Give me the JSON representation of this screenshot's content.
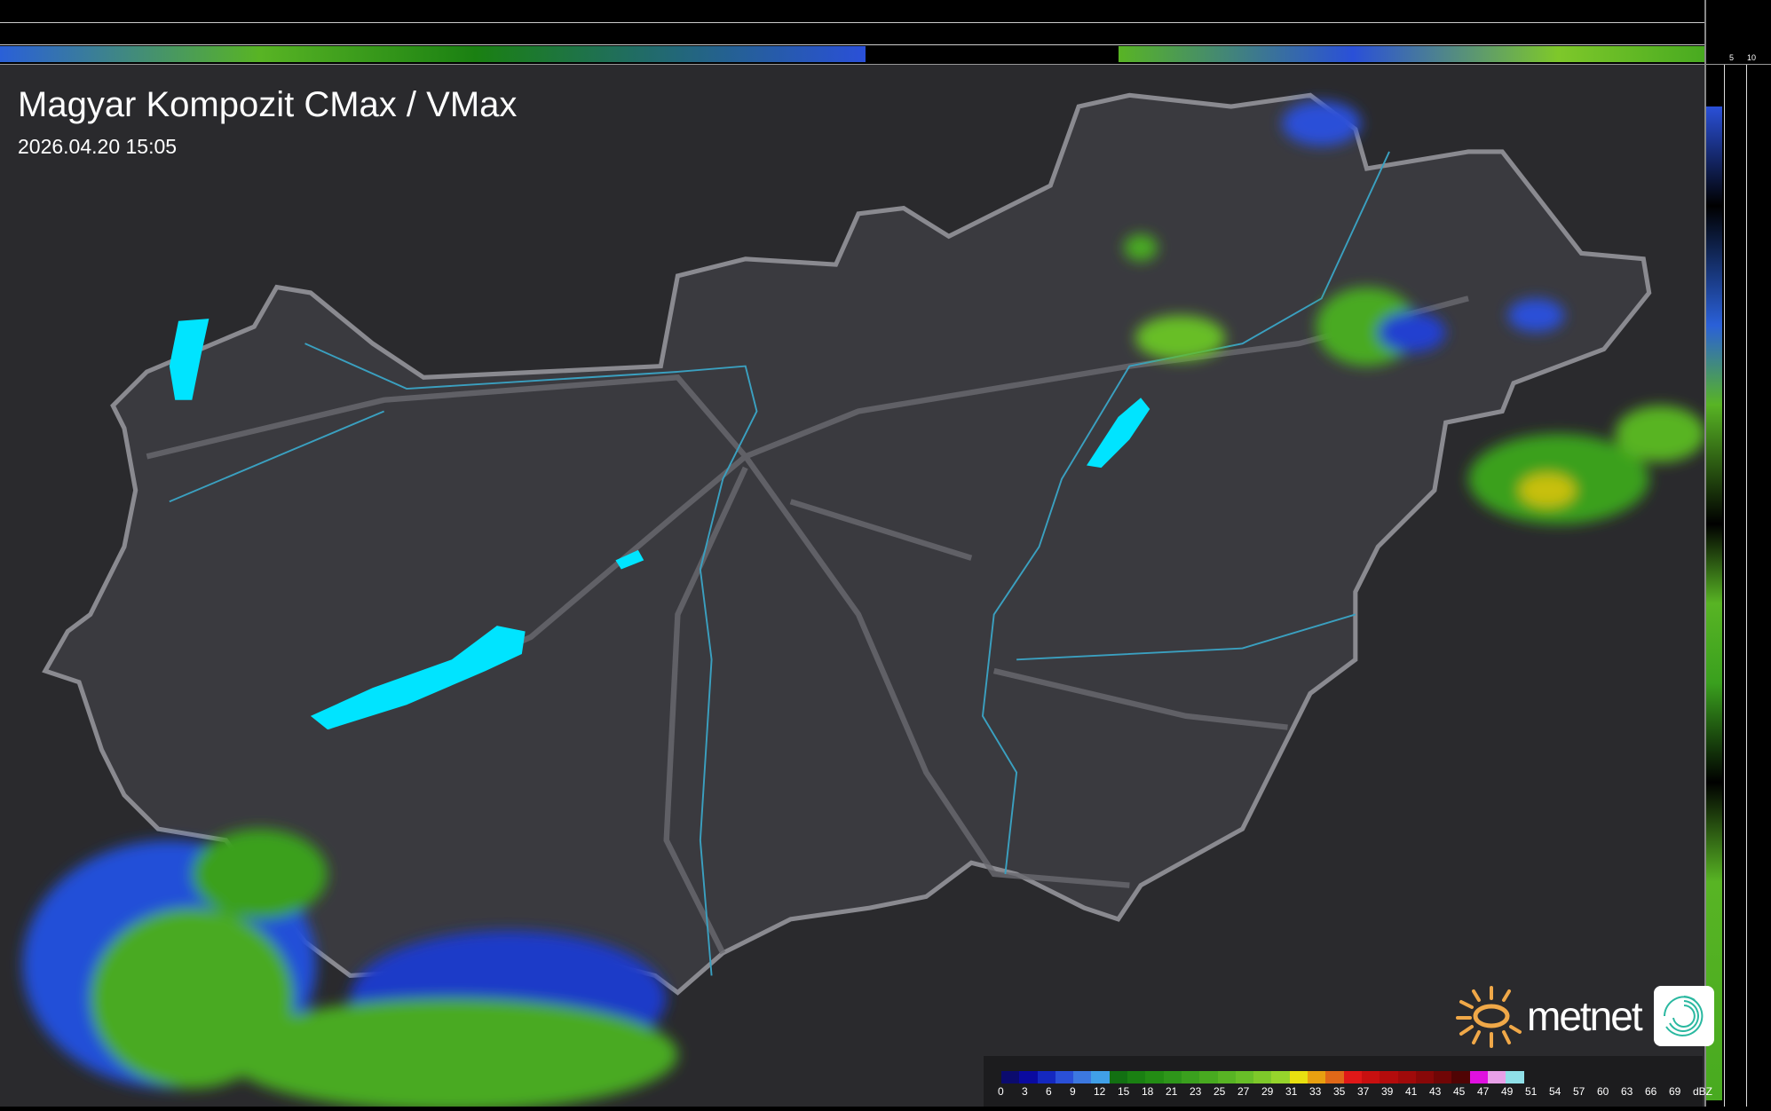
{
  "header": {
    "title": "Magyar Kompozit CMax / VMax",
    "timestamp": "2026.04.20 15:05"
  },
  "side_scales": {
    "top_labels": [
      "10",
      "5"
    ],
    "right_labels": [
      "5",
      "10"
    ]
  },
  "legend": {
    "unit": "dBZ",
    "labels": [
      "0",
      "3",
      "6",
      "9",
      "12",
      "15",
      "18",
      "21",
      "23",
      "25",
      "27",
      "29",
      "31",
      "33",
      "35",
      "37",
      "39",
      "41",
      "43",
      "45",
      "47",
      "49",
      "51",
      "54",
      "57",
      "60",
      "63",
      "66",
      "69"
    ],
    "colors": [
      "#0b0b6e",
      "#0a0aa0",
      "#1428c0",
      "#2a50d8",
      "#3c78e0",
      "#40a0e8",
      "#127012",
      "#1a8012",
      "#238c14",
      "#2e961a",
      "#3aa01e",
      "#48aa20",
      "#58b424",
      "#68be28",
      "#7ec82a",
      "#96d42c",
      "#e8e010",
      "#e8a010",
      "#e06818",
      "#e01818",
      "#c81010",
      "#b40c0c",
      "#a00a0a",
      "#880808",
      "#700606",
      "#500404",
      "#e010e0",
      "#e8a0e8",
      "#90e0e8"
    ]
  },
  "brand": {
    "logo_text": "metnet",
    "accent": "#f0a848"
  },
  "colors": {
    "background": "#2b2b2e",
    "country": "#3a3a3e",
    "border": "#8a8a8e",
    "water": "#00e0ff",
    "rivers": "#3aa0c0"
  }
}
